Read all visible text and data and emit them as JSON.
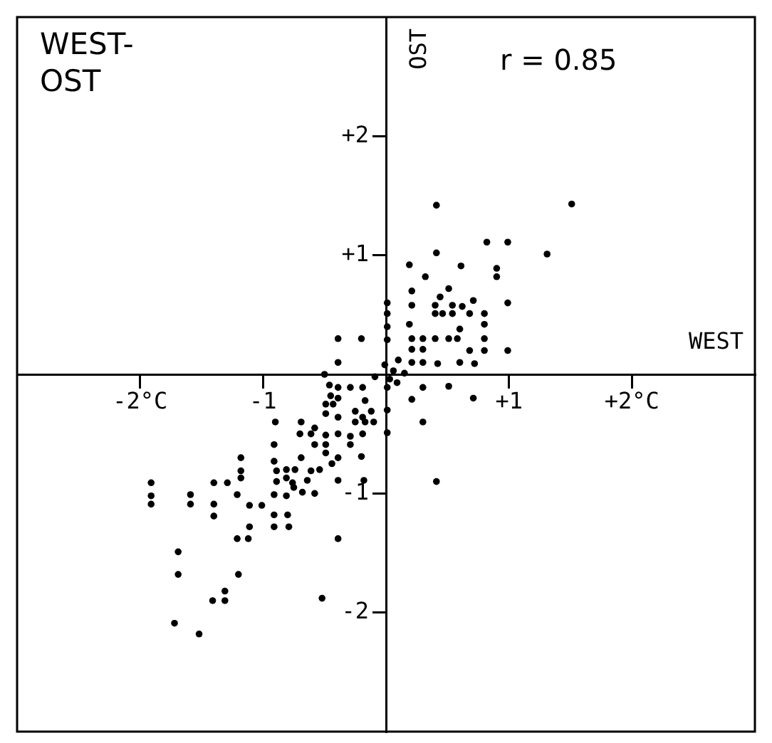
{
  "chart_data": {
    "type": "scatter",
    "title": "WEST-\nOST",
    "xlabel": "WEST",
    "ylabel": "OST",
    "annotations": [
      "r = 0.85"
    ],
    "xlim": [
      -3,
      3
    ],
    "ylim": [
      -3,
      3
    ],
    "xticks": [
      {
        "value": -2,
        "label": "-2°C"
      },
      {
        "value": -1,
        "label": "-1"
      },
      {
        "value": 1,
        "label": "+1"
      },
      {
        "value": 2,
        "label": "+2°C"
      }
    ],
    "yticks": [
      {
        "value": 2,
        "label": "+2"
      },
      {
        "value": 1,
        "label": "+1"
      },
      {
        "value": -1,
        "label": "-1"
      },
      {
        "value": -2,
        "label": "-2"
      }
    ],
    "grid": false,
    "marker": "circle",
    "series": [
      {
        "color": "#000000",
        "x": [
          0.41,
          1.51,
          0.82,
          0.99,
          0.41,
          1.31,
          0.19,
          0.61,
          0.9,
          0.9,
          0.32,
          0.21,
          0.51,
          0.44,
          0.99,
          0.71,
          0.01,
          0.21,
          0.4,
          0.54,
          0.62,
          0.01,
          0.4,
          0.46,
          0.54,
          0.68,
          0.8,
          0.8,
          0.19,
          0.6,
          0.01,
          0.21,
          0.3,
          0.4,
          0.51,
          0.58,
          0.8,
          -0.39,
          -0.2,
          0.01,
          0.99,
          0.21,
          0.3,
          0.68,
          0.8,
          0.1,
          0.21,
          0.3,
          0.42,
          0.6,
          0.72,
          -0.39,
          -0.01,
          0.06,
          0.15,
          -0.09,
          0.03,
          0.09,
          0.3,
          0.51,
          0.71,
          0.21,
          0.3,
          0.41,
          -0.5,
          -0.46,
          -0.39,
          -0.29,
          -0.19,
          0.01,
          -0.45,
          -0.39,
          -0.17,
          -0.49,
          -0.43,
          -0.25,
          -0.12,
          0.01,
          -0.49,
          -0.39,
          -0.19,
          -0.25,
          -0.17,
          -0.1,
          -0.9,
          -0.69,
          -0.58,
          0.01,
          -0.7,
          -0.61,
          -0.49,
          -0.39,
          -0.29,
          -0.19,
          -0.91,
          -0.58,
          -0.49,
          -0.29,
          -0.49,
          -0.39,
          -0.69,
          -0.2,
          -1.18,
          -0.91,
          -0.44,
          -0.54,
          -1.18,
          -0.89,
          -0.81,
          -0.74,
          -0.61,
          -1.18,
          -0.81,
          -0.89,
          -0.76,
          -0.64,
          -0.39,
          -0.18,
          -1.91,
          -1.4,
          -1.29,
          -0.75,
          -0.68,
          -0.58,
          -1.91,
          -1.59,
          -1.21,
          -0.91,
          -0.81,
          -1.91,
          -1.59,
          -1.4,
          -1.11,
          -1.01,
          -1.4,
          -0.91,
          -0.8,
          -1.11,
          -0.91,
          -0.79,
          -1.21,
          -1.12,
          -0.39,
          -1.69,
          -1.69,
          -1.2,
          -1.31,
          -1.41,
          -1.31,
          -0.52,
          -1.72,
          -1.52
        ],
        "values": [
          1.42,
          1.43,
          1.11,
          1.11,
          1.02,
          1.01,
          0.92,
          0.91,
          0.89,
          0.82,
          0.82,
          0.7,
          0.72,
          0.65,
          0.6,
          0.62,
          0.6,
          0.58,
          0.58,
          0.58,
          0.57,
          0.51,
          0.51,
          0.51,
          0.51,
          0.51,
          0.51,
          0.42,
          0.42,
          0.38,
          0.4,
          0.3,
          0.3,
          0.3,
          0.3,
          0.3,
          0.3,
          0.3,
          0.3,
          0.29,
          0.2,
          0.21,
          0.21,
          0.2,
          0.2,
          0.12,
          0.1,
          0.1,
          0.09,
          0.1,
          0.09,
          0.1,
          0.08,
          0.03,
          0.01,
          -0.02,
          -0.04,
          -0.07,
          -0.11,
          -0.1,
          -0.2,
          -0.21,
          -0.4,
          -0.9,
          0,
          -0.09,
          -0.11,
          -0.11,
          -0.11,
          -0.11,
          -0.18,
          -0.2,
          -0.22,
          -0.25,
          -0.25,
          -0.31,
          -0.31,
          -0.3,
          -0.33,
          -0.36,
          -0.36,
          -0.4,
          -0.4,
          -0.4,
          -0.4,
          -0.4,
          -0.45,
          -0.49,
          -0.5,
          -0.5,
          -0.51,
          -0.5,
          -0.52,
          -0.5,
          -0.59,
          -0.59,
          -0.59,
          -0.59,
          -0.66,
          -0.7,
          -0.7,
          -0.69,
          -0.7,
          -0.73,
          -0.75,
          -0.8,
          -0.81,
          -0.81,
          -0.8,
          -0.8,
          -0.81,
          -0.87,
          -0.87,
          -0.9,
          -0.91,
          -0.89,
          -0.89,
          -0.89,
          -0.91,
          -0.91,
          -0.91,
          -0.95,
          -0.99,
          -1,
          -1.02,
          -1.01,
          -1.01,
          -1.01,
          -1.02,
          -1.09,
          -1.09,
          -1.09,
          -1.1,
          -1.1,
          -1.19,
          -1.18,
          -1.18,
          -1.28,
          -1.28,
          -1.28,
          -1.38,
          -1.38,
          -1.38,
          -1.49,
          -1.68,
          -1.68,
          -1.82,
          -1.9,
          -1.9,
          -1.88,
          -2.09,
          -2.18
        ]
      }
    ]
  }
}
